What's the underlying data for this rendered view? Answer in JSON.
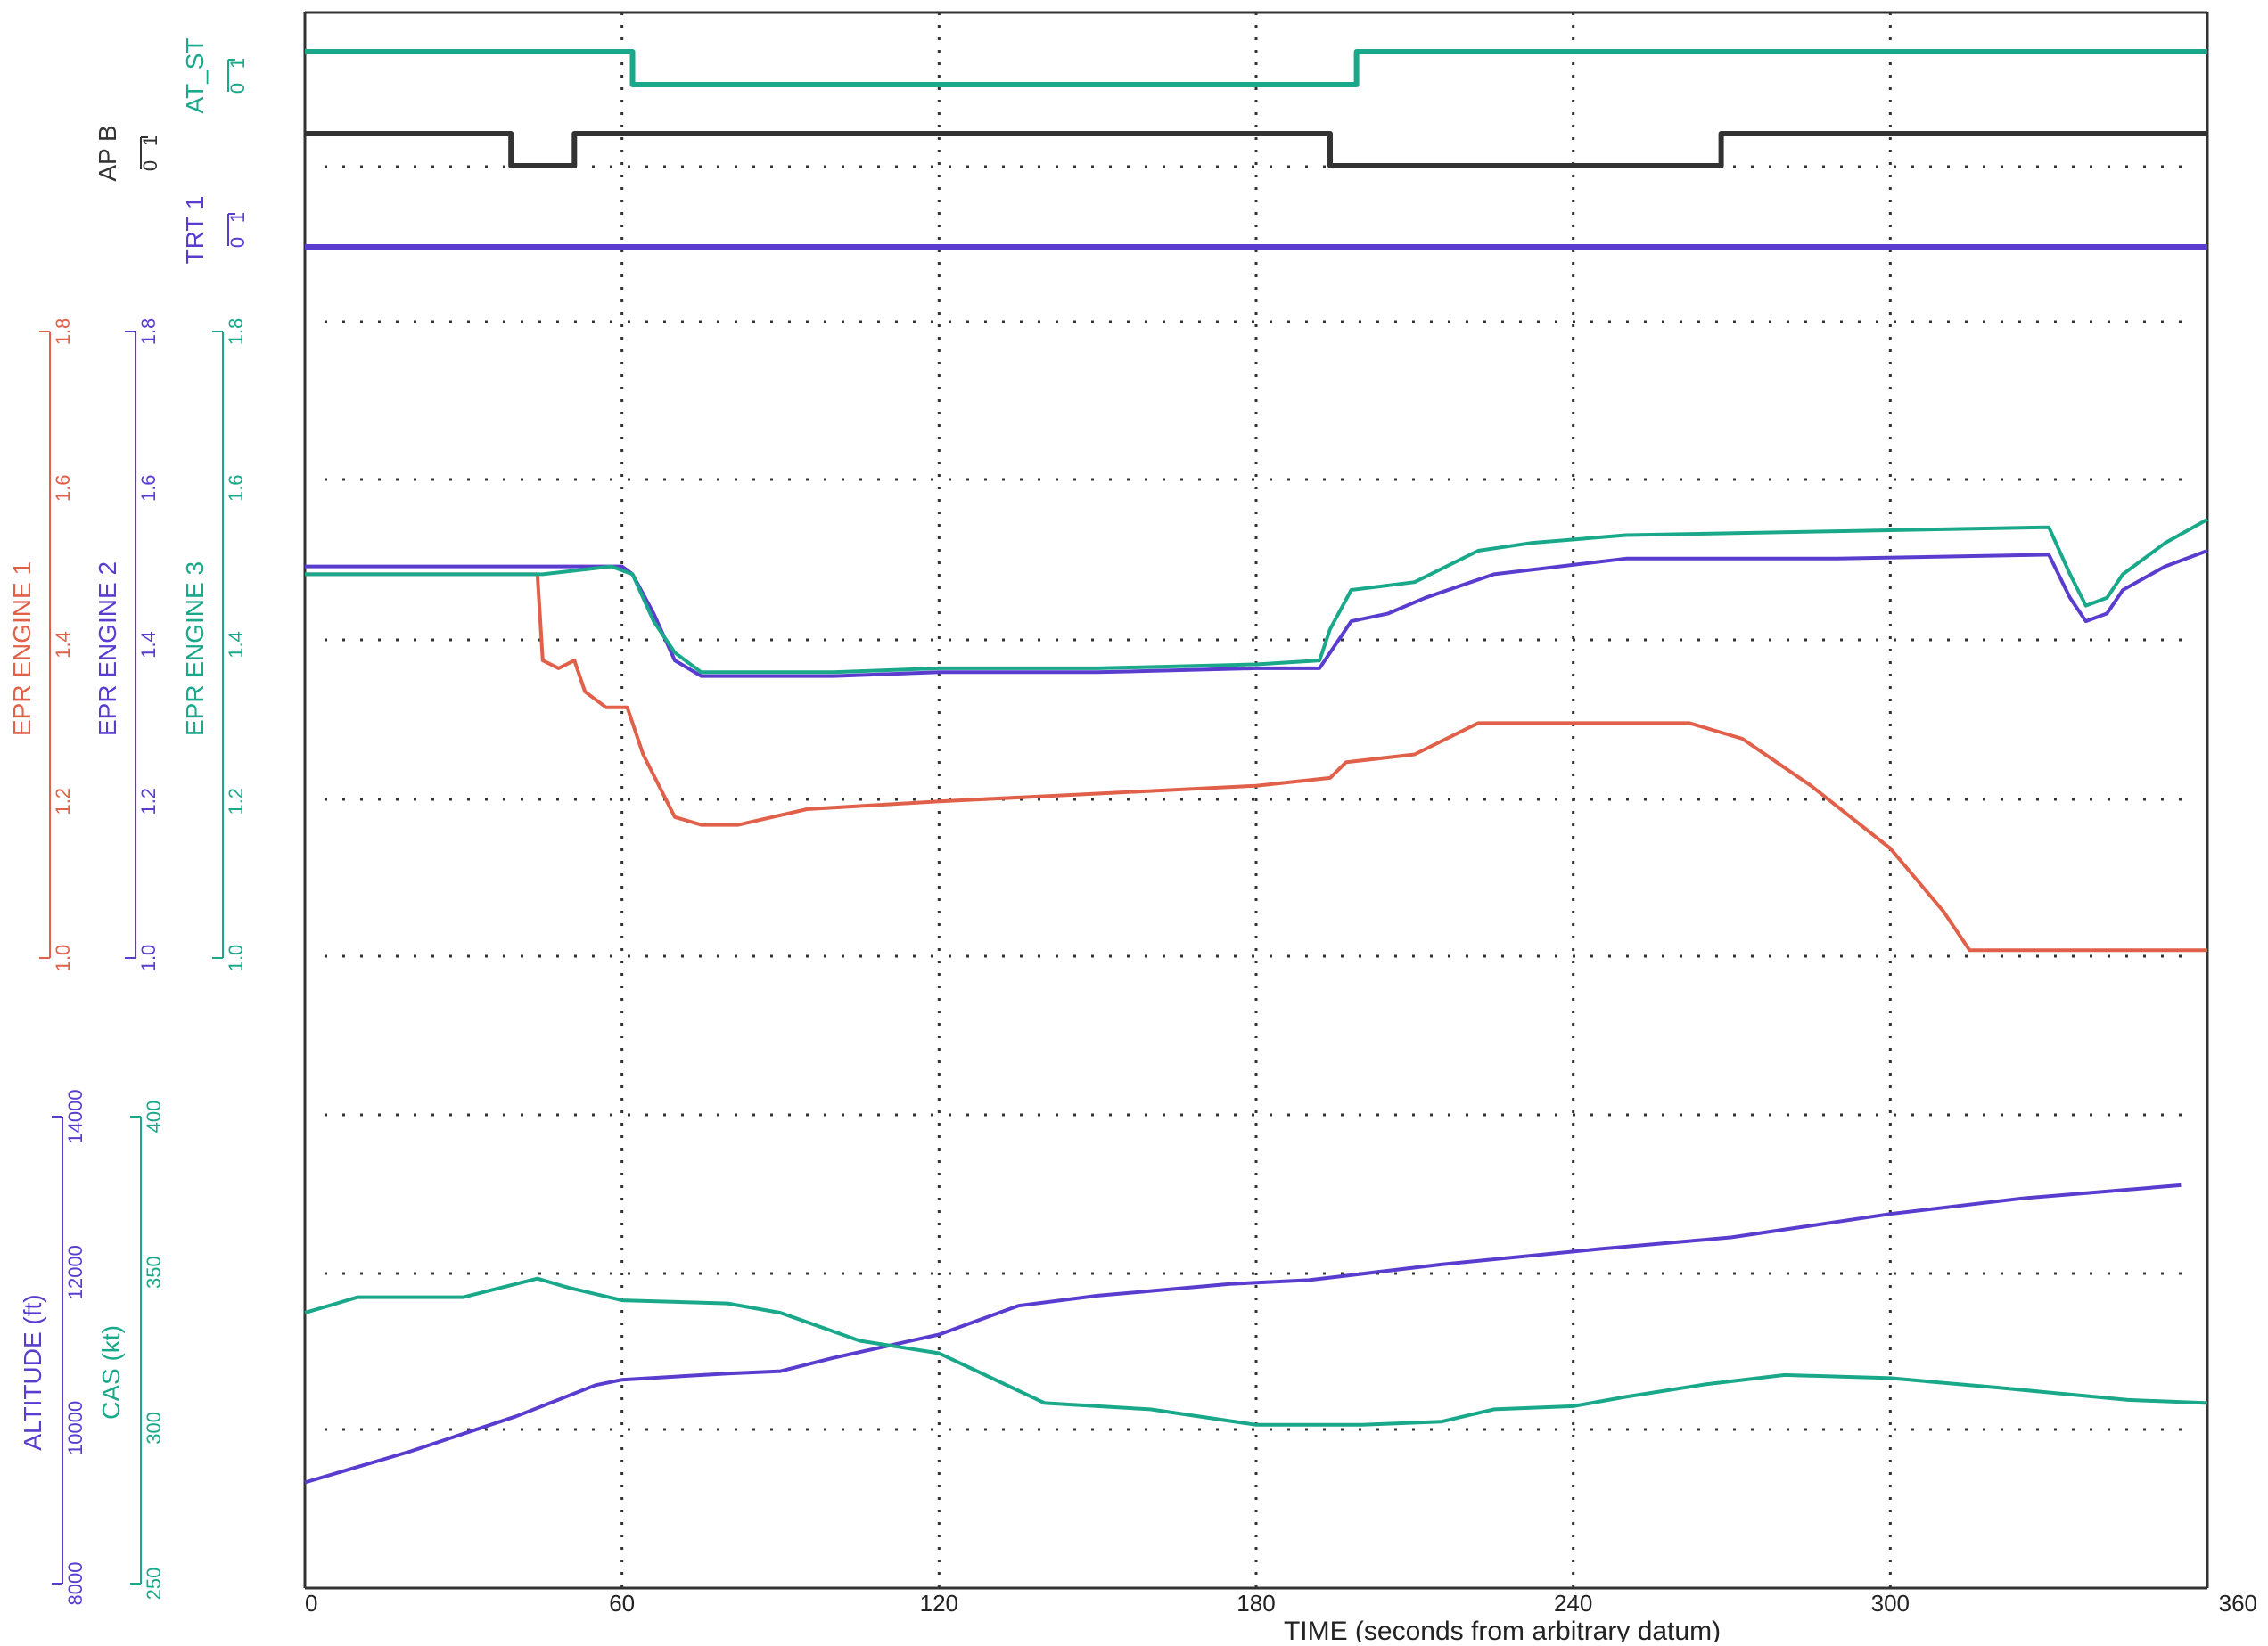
{
  "chart_data": {
    "type": "line",
    "xlabel": "TIME (seconds from arbitrary datum)",
    "x_ticks": [
      "0",
      "60",
      "120",
      "180",
      "240",
      "300",
      "360"
    ],
    "xlim": [
      0,
      360
    ],
    "colors": {
      "red": "#e0604a",
      "blue": "#5a3ccf",
      "green": "#1aa88a",
      "black": "#333333"
    },
    "discretes": [
      {
        "name": "AT_ST",
        "label": "AT_ST",
        "ticks": [
          "0",
          "1"
        ],
        "color": "#1aa88a",
        "points": [
          [
            0,
            1
          ],
          [
            62,
            1
          ],
          [
            62,
            0
          ],
          [
            199,
            0
          ],
          [
            199,
            1
          ],
          [
            360,
            1
          ]
        ]
      },
      {
        "name": "AP B",
        "label": "AP B",
        "ticks": [
          "0",
          "1"
        ],
        "color": "#333333",
        "points": [
          [
            0,
            1
          ],
          [
            39,
            1
          ],
          [
            39,
            0
          ],
          [
            51,
            0
          ],
          [
            51,
            1
          ],
          [
            194,
            1
          ],
          [
            194,
            0
          ],
          [
            268,
            0
          ],
          [
            268,
            1
          ],
          [
            360,
            1
          ]
        ]
      },
      {
        "name": "TRT 1",
        "label": "TRT 1",
        "ticks": [
          "0",
          "1"
        ],
        "color": "#5a3ccf",
        "points": [
          [
            0,
            0
          ],
          [
            360,
            0
          ]
        ]
      }
    ],
    "epr_axes": [
      {
        "label": "EPR ENGINE 1",
        "color": "#e0604a",
        "ticks": [
          "1.0",
          "1.2",
          "1.4",
          "1.6",
          "1.8"
        ]
      },
      {
        "label": "EPR ENGINE 2",
        "color": "#5a3ccf",
        "ticks": [
          "1.0",
          "1.2",
          "1.4",
          "1.6",
          "1.8"
        ]
      },
      {
        "label": "EPR ENGINE 3",
        "color": "#1aa88a",
        "ticks": [
          "1.0",
          "1.2",
          "1.4",
          "1.6",
          "1.8"
        ]
      }
    ],
    "epr_range": [
      1.0,
      1.8
    ],
    "epr_series": [
      {
        "name": "EPR ENGINE 1",
        "color": "#e0604a",
        "points": [
          [
            0,
            1.49
          ],
          [
            44,
            1.49
          ],
          [
            45,
            1.38
          ],
          [
            48,
            1.37
          ],
          [
            51,
            1.38
          ],
          [
            53,
            1.34
          ],
          [
            57,
            1.32
          ],
          [
            61,
            1.32
          ],
          [
            64,
            1.26
          ],
          [
            70,
            1.18
          ],
          [
            75,
            1.17
          ],
          [
            82,
            1.17
          ],
          [
            95,
            1.19
          ],
          [
            120,
            1.2
          ],
          [
            150,
            1.21
          ],
          [
            180,
            1.22
          ],
          [
            194,
            1.23
          ],
          [
            197,
            1.25
          ],
          [
            210,
            1.26
          ],
          [
            222,
            1.3
          ],
          [
            240,
            1.3
          ],
          [
            262,
            1.3
          ],
          [
            272,
            1.28
          ],
          [
            285,
            1.22
          ],
          [
            300,
            1.14
          ],
          [
            310,
            1.06
          ],
          [
            315,
            1.01
          ],
          [
            360,
            1.01
          ]
        ]
      },
      {
        "name": "EPR ENGINE 2",
        "color": "#5a3ccf",
        "points": [
          [
            0,
            1.5
          ],
          [
            60,
            1.5
          ],
          [
            62,
            1.49
          ],
          [
            66,
            1.44
          ],
          [
            70,
            1.38
          ],
          [
            75,
            1.36
          ],
          [
            100,
            1.36
          ],
          [
            120,
            1.365
          ],
          [
            150,
            1.365
          ],
          [
            180,
            1.37
          ],
          [
            192,
            1.37
          ],
          [
            195,
            1.4
          ],
          [
            198,
            1.43
          ],
          [
            205,
            1.44
          ],
          [
            212,
            1.46
          ],
          [
            225,
            1.49
          ],
          [
            250,
            1.51
          ],
          [
            270,
            1.51
          ],
          [
            290,
            1.51
          ],
          [
            330,
            1.515
          ],
          [
            334,
            1.46
          ],
          [
            337,
            1.43
          ],
          [
            341,
            1.44
          ],
          [
            344,
            1.47
          ],
          [
            352,
            1.5
          ],
          [
            360,
            1.52
          ]
        ]
      },
      {
        "name": "EPR ENGINE 3",
        "color": "#1aa88a",
        "points": [
          [
            0,
            1.49
          ],
          [
            45,
            1.49
          ],
          [
            58,
            1.5
          ],
          [
            62,
            1.49
          ],
          [
            66,
            1.43
          ],
          [
            70,
            1.39
          ],
          [
            75,
            1.365
          ],
          [
            100,
            1.365
          ],
          [
            120,
            1.37
          ],
          [
            150,
            1.37
          ],
          [
            180,
            1.375
          ],
          [
            192,
            1.38
          ],
          [
            194,
            1.42
          ],
          [
            198,
            1.47
          ],
          [
            210,
            1.48
          ],
          [
            222,
            1.52
          ],
          [
            232,
            1.53
          ],
          [
            250,
            1.54
          ],
          [
            290,
            1.545
          ],
          [
            330,
            1.55
          ],
          [
            334,
            1.49
          ],
          [
            337,
            1.45
          ],
          [
            341,
            1.46
          ],
          [
            344,
            1.49
          ],
          [
            352,
            1.53
          ],
          [
            360,
            1.56
          ]
        ]
      }
    ],
    "lower_axes": [
      {
        "label": "ALTITUDE (ft)",
        "color": "#5a3ccf",
        "ticks": [
          "8000",
          "10000",
          "12000",
          "14000"
        ],
        "range": [
          8000,
          14000
        ]
      },
      {
        "label": "CAS (kt)",
        "color": "#1aa88a",
        "ticks": [
          "250",
          "300",
          "350",
          "400"
        ],
        "range": [
          250,
          400
        ]
      }
    ],
    "lower_series": [
      {
        "name": "ALTITUDE (ft)",
        "color": "#5a3ccf",
        "axis": 0,
        "points": [
          [
            0,
            9300
          ],
          [
            20,
            9700
          ],
          [
            40,
            10150
          ],
          [
            55,
            10550
          ],
          [
            60,
            10620
          ],
          [
            80,
            10700
          ],
          [
            90,
            10730
          ],
          [
            100,
            10900
          ],
          [
            120,
            11200
          ],
          [
            135,
            11570
          ],
          [
            150,
            11700
          ],
          [
            175,
            11850
          ],
          [
            190,
            11900
          ],
          [
            215,
            12100
          ],
          [
            245,
            12300
          ],
          [
            270,
            12450
          ],
          [
            300,
            12750
          ],
          [
            325,
            12950
          ],
          [
            355,
            13120
          ]
        ]
      },
      {
        "name": "CAS (kt)",
        "color": "#1aa88a",
        "axis": 1,
        "points": [
          [
            0,
            337
          ],
          [
            10,
            342
          ],
          [
            30,
            342
          ],
          [
            44,
            348
          ],
          [
            50,
            345
          ],
          [
            60,
            341
          ],
          [
            80,
            340
          ],
          [
            90,
            337
          ],
          [
            105,
            328
          ],
          [
            120,
            324
          ],
          [
            140,
            308
          ],
          [
            160,
            306
          ],
          [
            180,
            301
          ],
          [
            200,
            301
          ],
          [
            215,
            302
          ],
          [
            225,
            306
          ],
          [
            240,
            307
          ],
          [
            250,
            310
          ],
          [
            265,
            314
          ],
          [
            280,
            317
          ],
          [
            300,
            316
          ],
          [
            320,
            313
          ],
          [
            345,
            309
          ],
          [
            360,
            308
          ]
        ]
      }
    ]
  }
}
